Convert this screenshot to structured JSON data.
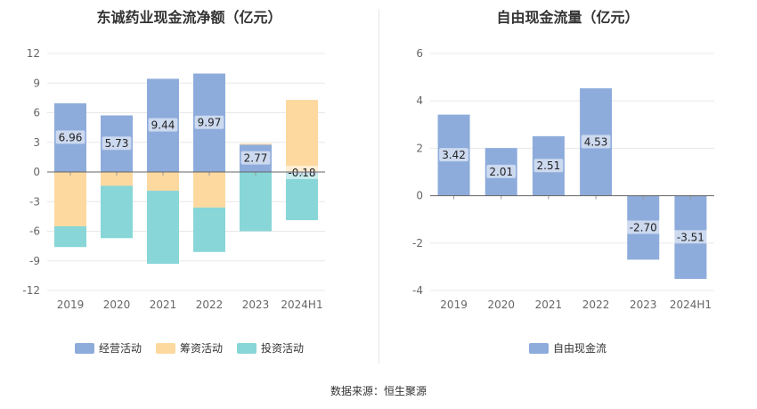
{
  "source_text": "数据来源：恒生聚源",
  "chart_data": [
    {
      "type": "bar",
      "stacked": true,
      "title": "东诚药业现金流净额（亿元）",
      "categories": [
        "2019",
        "2020",
        "2021",
        "2022",
        "2023",
        "2024H1"
      ],
      "ylim": [
        -12,
        12
      ],
      "yticks": [
        12,
        9,
        6,
        3,
        0,
        -3,
        -6,
        -9,
        -12
      ],
      "grid": true,
      "legend_position": "bottom",
      "series": [
        {
          "name": "经营活动",
          "color": "#8eacdb",
          "values": [
            6.96,
            5.73,
            9.44,
            9.97,
            2.77,
            -0.18
          ],
          "labels": [
            "6.96",
            "5.73",
            "9.44",
            "9.97",
            "2.77",
            "-0.18"
          ]
        },
        {
          "name": "筹资活动",
          "color": "#fdd9a0",
          "values": [
            -5.5,
            -1.4,
            -1.9,
            -3.6,
            0.1,
            7.3
          ]
        },
        {
          "name": "投资活动",
          "color": "#88d6d8",
          "values": [
            -2.1,
            -5.3,
            -7.4,
            -4.5,
            -6.0,
            -4.7
          ]
        }
      ]
    },
    {
      "type": "bar",
      "title": "自由现金流量（亿元）",
      "categories": [
        "2019",
        "2020",
        "2021",
        "2022",
        "2023",
        "2024H1"
      ],
      "ylim": [
        -4,
        6
      ],
      "yticks": [
        6,
        4,
        2,
        0,
        -2,
        -4
      ],
      "grid": true,
      "legend_position": "bottom",
      "series": [
        {
          "name": "自由现金流",
          "color": "#8eacdb",
          "values": [
            3.42,
            2.01,
            2.51,
            4.53,
            -2.7,
            -3.51
          ],
          "labels": [
            "3.42",
            "2.01",
            "2.51",
            "4.53",
            "-2.70",
            "-3.51"
          ]
        }
      ]
    }
  ]
}
